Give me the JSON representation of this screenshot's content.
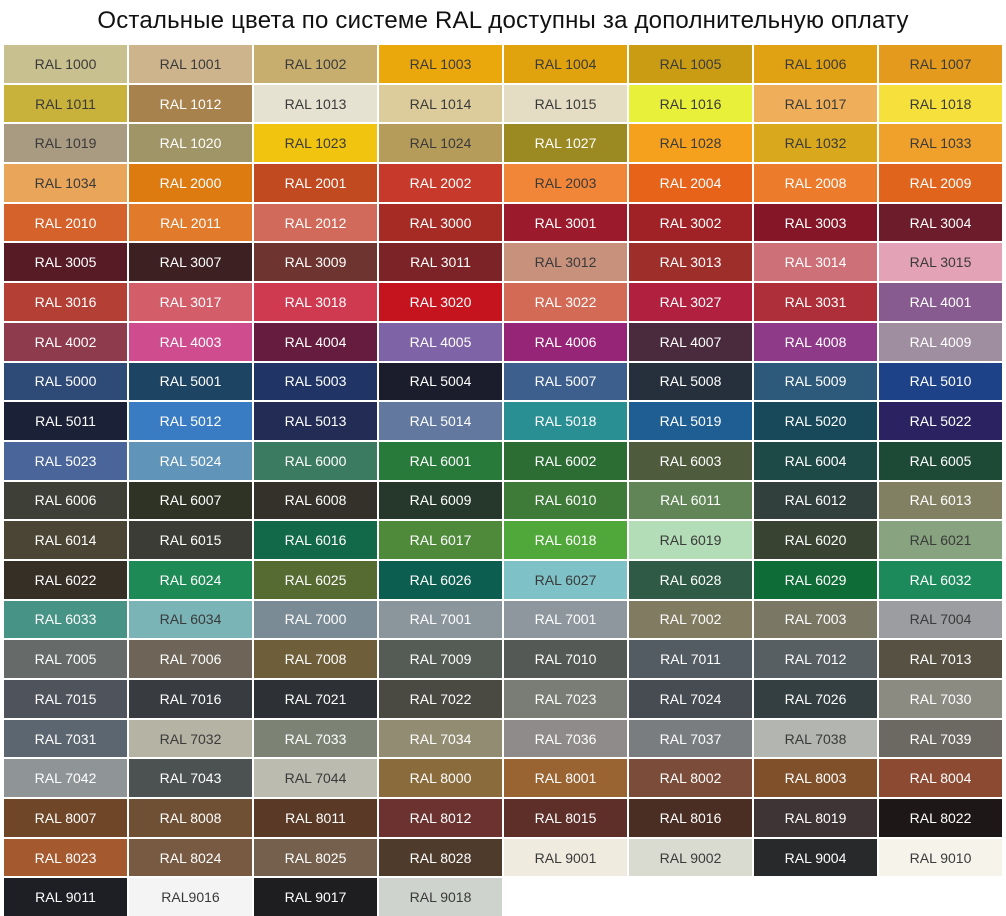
{
  "header": {
    "title": "Остальные цвета по системе RAL доступны за дополнительную оплату"
  },
  "swatches": [
    {
      "label": "RAL 1000",
      "color": "#c9c08f"
    },
    {
      "label": "RAL 1001",
      "color": "#cdb48c"
    },
    {
      "label": "RAL 1002",
      "color": "#c8ae6e"
    },
    {
      "label": "RAL 1003",
      "color": "#eba80c"
    },
    {
      "label": "RAL 1004",
      "color": "#e0a30e"
    },
    {
      "label": "RAL 1005",
      "color": "#c99c13"
    },
    {
      "label": "RAL 1006",
      "color": "#e0a113"
    },
    {
      "label": "RAL 1007",
      "color": "#e49a1c"
    },
    {
      "label": "RAL 1011",
      "color": "#c9b23c"
    },
    {
      "label": "RAL 1012",
      "color": "#a8824c"
    },
    {
      "label": "RAL 1013",
      "color": "#e6e2d2"
    },
    {
      "label": "RAL 1014",
      "color": "#dccc9c"
    },
    {
      "label": "RAL 1015",
      "color": "#e5dcc4"
    },
    {
      "label": "RAL 1016",
      "color": "#e8f03a"
    },
    {
      "label": "RAL 1017",
      "color": "#efae5a"
    },
    {
      "label": "RAL 1018",
      "color": "#f5e03c"
    },
    {
      "label": "RAL 1019",
      "color": "#a99a82"
    },
    {
      "label": "RAL 1020",
      "color": "#9f9566"
    },
    {
      "label": "RAL 1023",
      "color": "#f1c40f"
    },
    {
      "label": "RAL 1024",
      "color": "#b59c5a"
    },
    {
      "label": "RAL 1027",
      "color": "#9b8a22"
    },
    {
      "label": "RAL 1028",
      "color": "#f5a11e"
    },
    {
      "label": "RAL 1032",
      "color": "#d9a81c"
    },
    {
      "label": "RAL 1033",
      "color": "#f0a12b"
    },
    {
      "label": "RAL 1034",
      "color": "#e9a55a"
    },
    {
      "label": "RAL 2000",
      "color": "#dd7a10"
    },
    {
      "label": "RAL 2001",
      "color": "#c24a21"
    },
    {
      "label": "RAL 2002",
      "color": "#c7392b"
    },
    {
      "label": "RAL 2003",
      "color": "#f28638"
    },
    {
      "label": "RAL 2004",
      "color": "#e8631a"
    },
    {
      "label": "RAL 2008",
      "color": "#ec7b2c"
    },
    {
      "label": "RAL 2009",
      "color": "#e0641b"
    },
    {
      "label": "RAL 2010",
      "color": "#d4622a"
    },
    {
      "label": "RAL 2011",
      "color": "#e27a2c"
    },
    {
      "label": "RAL 2012",
      "color": "#d16a5a"
    },
    {
      "label": "RAL 3000",
      "color": "#a52b24"
    },
    {
      "label": "RAL 3001",
      "color": "#9b1b2c"
    },
    {
      "label": "RAL 3002",
      "color": "#a02126"
    },
    {
      "label": "RAL 3003",
      "color": "#851628"
    },
    {
      "label": "RAL 3004",
      "color": "#6c1c2a"
    },
    {
      "label": "RAL 3005",
      "color": "#571b26"
    },
    {
      "label": "RAL 3007",
      "color": "#3d2022"
    },
    {
      "label": "RAL 3009",
      "color": "#6e3530"
    },
    {
      "label": "RAL 3011",
      "color": "#7b2326"
    },
    {
      "label": "RAL 3012",
      "color": "#c7917c"
    },
    {
      "label": "RAL 3013",
      "color": "#9d2e2a"
    },
    {
      "label": "RAL 3014",
      "color": "#cd7078"
    },
    {
      "label": "RAL 3015",
      "color": "#e3a2b6"
    },
    {
      "label": "RAL 3016",
      "color": "#b33f35"
    },
    {
      "label": "RAL 3017",
      "color": "#d45d6a"
    },
    {
      "label": "RAL 3018",
      "color": "#cf3a50"
    },
    {
      "label": "RAL 3020",
      "color": "#c6141f"
    },
    {
      "label": "RAL 3022",
      "color": "#d36a55"
    },
    {
      "label": "RAL 3027",
      "color": "#b2203f"
    },
    {
      "label": "RAL 3031",
      "color": "#ae2f39"
    },
    {
      "label": "RAL 4001",
      "color": "#875b8f"
    },
    {
      "label": "RAL 4002",
      "color": "#8f3b4e"
    },
    {
      "label": "RAL 4003",
      "color": "#cf4d8f"
    },
    {
      "label": "RAL 4004",
      "color": "#661c3e"
    },
    {
      "label": "RAL 4005",
      "color": "#7e63a6"
    },
    {
      "label": "RAL 4006",
      "color": "#962577"
    },
    {
      "label": "RAL 4007",
      "color": "#4a2a3d"
    },
    {
      "label": "RAL 4008",
      "color": "#8f3a88"
    },
    {
      "label": "RAL 4009",
      "color": "#9f8ea0"
    },
    {
      "label": "RAL 5000",
      "color": "#2e4a77"
    },
    {
      "label": "RAL 5001",
      "color": "#1e4464"
    },
    {
      "label": "RAL 5003",
      "color": "#203566"
    },
    {
      "label": "RAL 5004",
      "color": "#1b1c2c"
    },
    {
      "label": "RAL 5007",
      "color": "#3d5f8e"
    },
    {
      "label": "RAL 5008",
      "color": "#262f3c"
    },
    {
      "label": "RAL 5009",
      "color": "#2d5a7b"
    },
    {
      "label": "RAL 5010",
      "color": "#1d4287"
    },
    {
      "label": "RAL 5011",
      "color": "#1b2237"
    },
    {
      "label": "RAL 5012",
      "color": "#3a7cc3"
    },
    {
      "label": "RAL 5013",
      "color": "#222c55"
    },
    {
      "label": "RAL 5014",
      "color": "#62789e"
    },
    {
      "label": "RAL 5018",
      "color": "#2a8f93"
    },
    {
      "label": "RAL 5019",
      "color": "#1f5e93"
    },
    {
      "label": "RAL 5020",
      "color": "#17495a"
    },
    {
      "label": "RAL 5022",
      "color": "#2b2361"
    },
    {
      "label": "RAL 5023",
      "color": "#4a6599"
    },
    {
      "label": "RAL 5024",
      "color": "#6095b9"
    },
    {
      "label": "RAL 6000",
      "color": "#3b7b62"
    },
    {
      "label": "RAL 6001",
      "color": "#277a3a"
    },
    {
      "label": "RAL 6002",
      "color": "#2c6d34"
    },
    {
      "label": "RAL 6003",
      "color": "#4e5b3d"
    },
    {
      "label": "RAL 6004",
      "color": "#1d4a47"
    },
    {
      "label": "RAL 6005",
      "color": "#1d4a37"
    },
    {
      "label": "RAL 6006",
      "color": "#3e3f36"
    },
    {
      "label": "RAL 6007",
      "color": "#2e3326"
    },
    {
      "label": "RAL 6008",
      "color": "#33312a"
    },
    {
      "label": "RAL 6009",
      "color": "#26372c"
    },
    {
      "label": "RAL 6010",
      "color": "#3f7b38"
    },
    {
      "label": "RAL 6011",
      "color": "#628558"
    },
    {
      "label": "RAL 6012",
      "color": "#31403c"
    },
    {
      "label": "RAL 6013",
      "color": "#828063"
    },
    {
      "label": "RAL 6014",
      "color": "#4a4535"
    },
    {
      "label": "RAL 6015",
      "color": "#3a3c35"
    },
    {
      "label": "RAL 6016",
      "color": "#12694a"
    },
    {
      "label": "RAL 6017",
      "color": "#4f8a3b"
    },
    {
      "label": "RAL 6018",
      "color": "#50a83a"
    },
    {
      "label": "RAL 6019",
      "color": "#b2ddb6"
    },
    {
      "label": "RAL 6020",
      "color": "#384331"
    },
    {
      "label": "RAL 6021",
      "color": "#88a37f"
    },
    {
      "label": "RAL 6022",
      "color": "#362f26"
    },
    {
      "label": "RAL 6024",
      "color": "#1e8a55"
    },
    {
      "label": "RAL 6025",
      "color": "#556b32"
    },
    {
      "label": "RAL 6026",
      "color": "#0c5e50"
    },
    {
      "label": "RAL 6027",
      "color": "#7ec2c7"
    },
    {
      "label": "RAL 6028",
      "color": "#2f5a45"
    },
    {
      "label": "RAL 6029",
      "color": "#0e6d36"
    },
    {
      "label": "RAL 6032",
      "color": "#1c8a5a"
    },
    {
      "label": "RAL 6033",
      "color": "#479386"
    },
    {
      "label": "RAL 6034",
      "color": "#7ab4b6"
    },
    {
      "label": "RAL 7000",
      "color": "#7b8b95"
    },
    {
      "label": "RAL 7001",
      "color": "#8b959c"
    },
    {
      "label": "RAL 7001",
      "color": "#8e979e"
    },
    {
      "label": "RAL 7002",
      "color": "#817b62"
    },
    {
      "label": "RAL 7003",
      "color": "#7a7765"
    },
    {
      "label": "RAL 7004",
      "color": "#9b9da1"
    },
    {
      "label": "RAL 7005",
      "color": "#666b6a"
    },
    {
      "label": "RAL 7006",
      "color": "#6e6558"
    },
    {
      "label": "RAL 7008",
      "color": "#6e5e3a"
    },
    {
      "label": "RAL 7009",
      "color": "#555c55"
    },
    {
      "label": "RAL 7010",
      "color": "#545955"
    },
    {
      "label": "RAL 7011",
      "color": "#535b63"
    },
    {
      "label": "RAL 7012",
      "color": "#585f63"
    },
    {
      "label": "RAL 7013",
      "color": "#565143"
    },
    {
      "label": "RAL 7015",
      "color": "#4f535c"
    },
    {
      "label": "RAL 7016",
      "color": "#383c40"
    },
    {
      "label": "RAL 7021",
      "color": "#2d3034"
    },
    {
      "label": "RAL 7022",
      "color": "#4a4942"
    },
    {
      "label": "RAL 7023",
      "color": "#7a7d75"
    },
    {
      "label": "RAL 7024",
      "color": "#474b52"
    },
    {
      "label": "RAL 7026",
      "color": "#343f42"
    },
    {
      "label": "RAL 7030",
      "color": "#8c8b82"
    },
    {
      "label": "RAL 7031",
      "color": "#5b6670"
    },
    {
      "label": "RAL 7032",
      "color": "#b5b3a4"
    },
    {
      "label": "RAL 7033",
      "color": "#7c8374"
    },
    {
      "label": "RAL 7034",
      "color": "#918c72"
    },
    {
      "label": "RAL 7036",
      "color": "#8f8b8b"
    },
    {
      "label": "RAL 7037",
      "color": "#7a7d80"
    },
    {
      "label": "RAL 7038",
      "color": "#b3b5b0"
    },
    {
      "label": "RAL 7039",
      "color": "#6c6962"
    },
    {
      "label": "RAL 7042",
      "color": "#8f9597"
    },
    {
      "label": "RAL 7043",
      "color": "#4c5152"
    },
    {
      "label": "RAL 7044",
      "color": "#bcbbb0"
    },
    {
      "label": "RAL 8000",
      "color": "#8a6c3c"
    },
    {
      "label": "RAL 8001",
      "color": "#9a6332"
    },
    {
      "label": "RAL 8002",
      "color": "#7b4c39"
    },
    {
      "label": "RAL 8003",
      "color": "#80502b"
    },
    {
      "label": "RAL 8004",
      "color": "#8c4a33"
    },
    {
      "label": "RAL 8007",
      "color": "#6f4627"
    },
    {
      "label": "RAL 8008",
      "color": "#6f5034"
    },
    {
      "label": "RAL 8011",
      "color": "#5a3a26"
    },
    {
      "label": "RAL 8012",
      "color": "#6b3230"
    },
    {
      "label": "RAL 8015",
      "color": "#5e2f29"
    },
    {
      "label": "RAL 8016",
      "color": "#4a2d23"
    },
    {
      "label": "RAL 8019",
      "color": "#3e3335"
    },
    {
      "label": "RAL 8022",
      "color": "#1d1817"
    },
    {
      "label": "RAL 8023",
      "color": "#a5592f"
    },
    {
      "label": "RAL 8024",
      "color": "#785941"
    },
    {
      "label": "RAL 8025",
      "color": "#75604e"
    },
    {
      "label": "RAL 8028",
      "color": "#4e3b2b"
    },
    {
      "label": "RAL 9001",
      "color": "#efebde"
    },
    {
      "label": "RAL 9002",
      "color": "#dadbd0"
    },
    {
      "label": "RAL 9004",
      "color": "#28292b"
    },
    {
      "label": "RAL 9010",
      "color": "#f5f3ea"
    },
    {
      "label": "RAL 9011",
      "color": "#1d1f24"
    },
    {
      "label": "RAL9016",
      "color": "#f3f4f3"
    },
    {
      "label": "RAL 9017",
      "color": "#1e1e20"
    },
    {
      "label": "RAL 9018",
      "color": "#cfd3cd"
    }
  ]
}
